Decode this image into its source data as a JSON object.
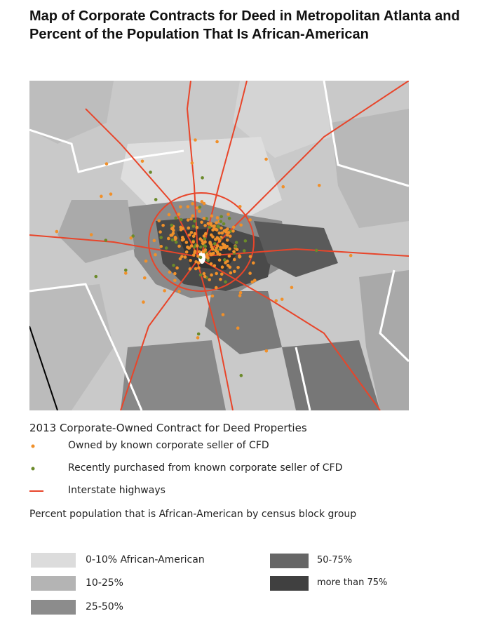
{
  "header": {
    "title": "Map of Corporate Contracts for Deed in Metropolitan Atlanta and Percent of the Population That Is African-American"
  },
  "legend": {
    "title": "2013 Corporate-Owned Contract for Deed Properties",
    "items": [
      "Owned by known corporate seller of CFD",
      "Recently purchased from known corporate seller of CFD",
      "Interstate highways"
    ],
    "shading_title": "Percent population that is African-American by census block group",
    "shading": [
      "0-10% African-American",
      "10-25%",
      "25-50%",
      "50-75%",
      "more than 75%"
    ]
  }
}
